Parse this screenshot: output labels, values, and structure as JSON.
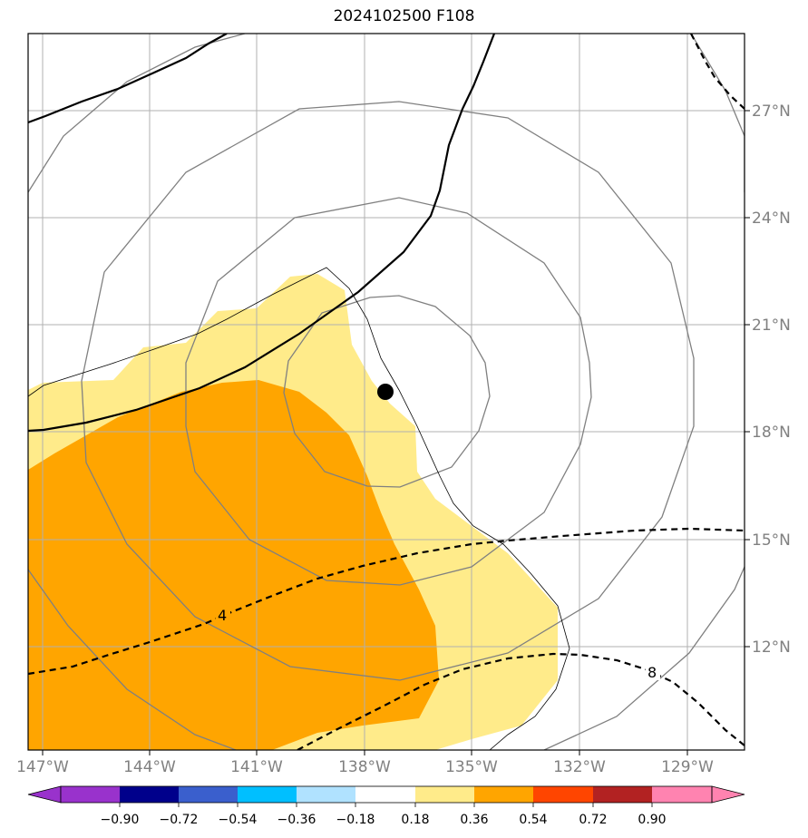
{
  "title": "2024102500 F108",
  "map": {
    "lon_ticks": [
      "147°W",
      "144°W",
      "141°W",
      "138°W",
      "135°W",
      "132°W",
      "129°W"
    ],
    "lat_ticks": [
      "27°N",
      "24°N",
      "21°N",
      "18°N",
      "15°N",
      "12°N"
    ],
    "contour_labels": [
      "4",
      "8"
    ],
    "center_marker": "storm-center",
    "colors": {
      "fill_low": "#ffeb8a",
      "fill_high": "#ffa500",
      "grid": "#b0b0b0",
      "range_rings": "#808080",
      "contours": "#000000"
    }
  },
  "colorbar": {
    "ticks": [
      "−0.90",
      "−0.72",
      "−0.54",
      "−0.36",
      "−0.18",
      "0.18",
      "0.36",
      "0.54",
      "0.72",
      "0.90"
    ],
    "colors": [
      "#9932cc",
      "#00008b",
      "#3a5fcd",
      "#00bfff",
      "#b0e2ff",
      "#ffffff",
      "#ffeb8a",
      "#ffa500",
      "#ff4500",
      "#b22222",
      "#ff83b0",
      "#ff83b0"
    ]
  }
}
